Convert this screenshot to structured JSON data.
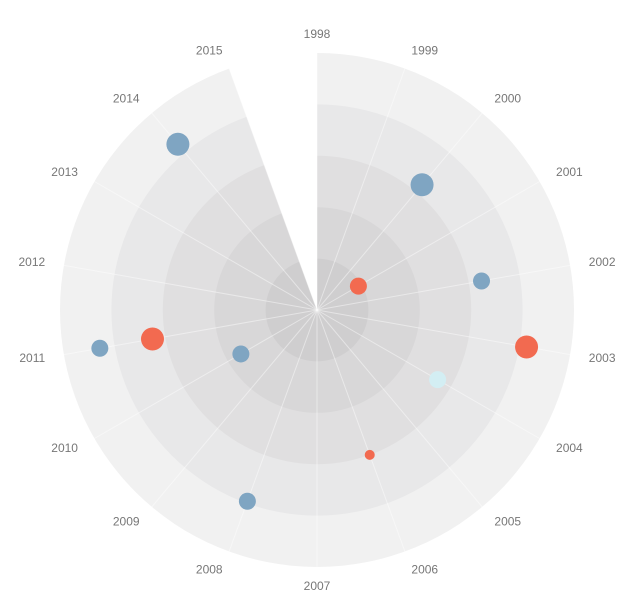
{
  "chart_data": {
    "type": "scatter",
    "coordinate_system": "polar",
    "angular_axis": {
      "categories": [
        "1998",
        "1999",
        "2000",
        "2001",
        "2002",
        "2003",
        "2004",
        "2005",
        "2006",
        "2007",
        "2008",
        "2009",
        "2010",
        "2011",
        "2012",
        "2013",
        "2014",
        "2015"
      ],
      "direction": "clockwise",
      "start": "top"
    },
    "radial_axis": {
      "range": [
        0,
        5
      ],
      "bands": 5,
      "tick_labels_shown": false
    },
    "empty_sector_category": "2015",
    "grid": true,
    "legend": "none",
    "colors": {
      "blue": "#7fa5c2",
      "red": "#f26a50",
      "light": "#d3eef3"
    },
    "points": [
      {
        "year": "2000",
        "r": 3.18,
        "size": 3,
        "color": "blue"
      },
      {
        "year": "2001",
        "r": 0.93,
        "size": 2,
        "color": "red"
      },
      {
        "year": "2002",
        "r": 3.25,
        "size": 2,
        "color": "blue"
      },
      {
        "year": "2003",
        "r": 4.14,
        "size": 3,
        "color": "red"
      },
      {
        "year": "2004",
        "r": 2.71,
        "size": 2,
        "color": "light"
      },
      {
        "year": "2006",
        "r": 3.0,
        "size": 1,
        "color": "red"
      },
      {
        "year": "2008",
        "r": 3.96,
        "size": 2,
        "color": "blue"
      },
      {
        "year": "2010",
        "r": 1.71,
        "size": 2,
        "color": "blue"
      },
      {
        "year": "2011",
        "r": 3.25,
        "size": 3,
        "color": "red"
      },
      {
        "year": "2011",
        "r": 4.29,
        "size": 2,
        "color": "blue"
      },
      {
        "year": "2014",
        "r": 4.21,
        "size": 3,
        "color": "blue"
      }
    ]
  }
}
